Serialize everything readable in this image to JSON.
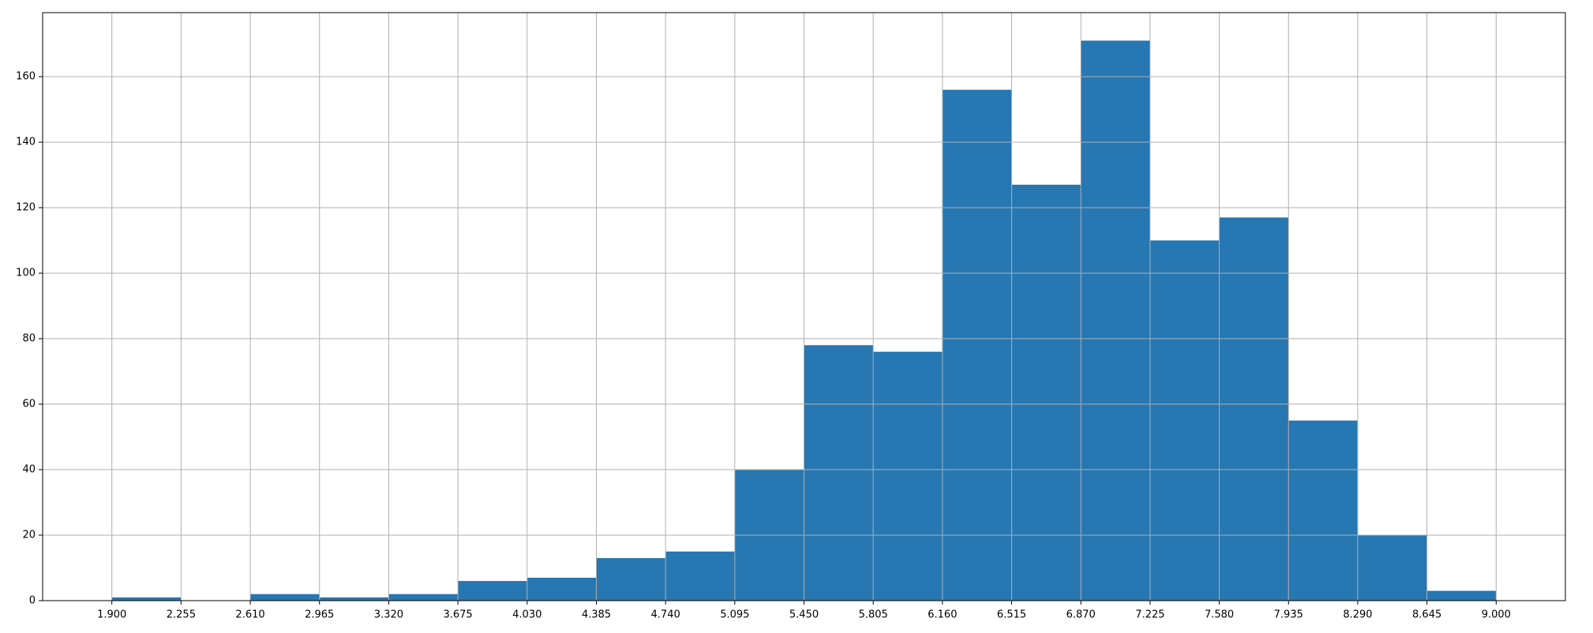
{
  "chart_data": {
    "type": "histogram",
    "bins": [
      1.9,
      2.255,
      2.61,
      2.965,
      3.32,
      3.675,
      4.03,
      4.385,
      4.74,
      5.095,
      5.45,
      5.805,
      6.16,
      6.515,
      6.87,
      7.225,
      7.58,
      7.935,
      8.29,
      8.645,
      9.0
    ],
    "counts": [
      1,
      0,
      2,
      1,
      2,
      6,
      7,
      13,
      15,
      40,
      78,
      76,
      156,
      127,
      171,
      110,
      117,
      55,
      20,
      3
    ],
    "color": "#2677b2",
    "xlim": [
      1.545,
      9.355
    ],
    "xticks": [
      {
        "value": 1.9,
        "label": "1.900"
      },
      {
        "value": 2.255,
        "label": "2.255"
      },
      {
        "value": 2.61,
        "label": "2.610"
      },
      {
        "value": 2.965,
        "label": "2.965"
      },
      {
        "value": 3.32,
        "label": "3.320"
      },
      {
        "value": 3.675,
        "label": "3.675"
      },
      {
        "value": 4.03,
        "label": "4.030"
      },
      {
        "value": 4.385,
        "label": "4.385"
      },
      {
        "value": 4.74,
        "label": "4.740"
      },
      {
        "value": 5.095,
        "label": "5.095"
      },
      {
        "value": 5.45,
        "label": "5.450"
      },
      {
        "value": 5.805,
        "label": "5.805"
      },
      {
        "value": 6.16,
        "label": "6.160"
      },
      {
        "value": 6.515,
        "label": "6.515"
      },
      {
        "value": 6.87,
        "label": "6.870"
      },
      {
        "value": 7.225,
        "label": "7.225"
      },
      {
        "value": 7.58,
        "label": "7.580"
      },
      {
        "value": 7.935,
        "label": "7.935"
      },
      {
        "value": 8.29,
        "label": "8.290"
      },
      {
        "value": 8.645,
        "label": "8.645"
      },
      {
        "value": 9.0,
        "label": "9.000"
      }
    ],
    "ylim": [
      0,
      179.55
    ],
    "yticks": [
      0,
      20,
      40,
      60,
      80,
      100,
      120,
      140,
      160
    ],
    "grid": true
  }
}
